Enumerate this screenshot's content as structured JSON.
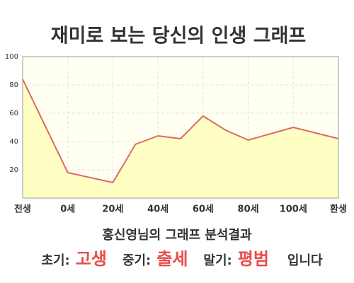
{
  "chart_data": {
    "type": "line",
    "title": "재미로 보는 당신의 인생 그래프",
    "x": [
      -20,
      0,
      20,
      30,
      40,
      50,
      60,
      70,
      80,
      100,
      120
    ],
    "values": [
      84,
      18,
      11,
      38,
      44,
      42,
      58,
      48,
      41,
      50,
      42
    ],
    "color": "#e06666",
    "fill": "#ffffc4",
    "xlim": [
      -20,
      120
    ],
    "xticks": [
      {
        "value": -20,
        "label": "전생"
      },
      {
        "value": 0,
        "label": "0세"
      },
      {
        "value": 20,
        "label": "20세"
      },
      {
        "value": 40,
        "label": "40세"
      },
      {
        "value": 60,
        "label": "60세"
      },
      {
        "value": 80,
        "label": "80세"
      },
      {
        "value": 100,
        "label": "100세"
      },
      {
        "value": 120,
        "label": "환생"
      }
    ],
    "ylim": [
      0,
      100
    ],
    "yticks": [
      20,
      40,
      60,
      80,
      100
    ],
    "grid": true
  },
  "result": {
    "title": "홍신영님의 그래프 분석결과",
    "items": [
      {
        "label": "초기:",
        "value": "고생"
      },
      {
        "label": "중기:",
        "value": "출세"
      },
      {
        "label": "말기:",
        "value": "평범"
      }
    ],
    "suffix": "입니다"
  }
}
